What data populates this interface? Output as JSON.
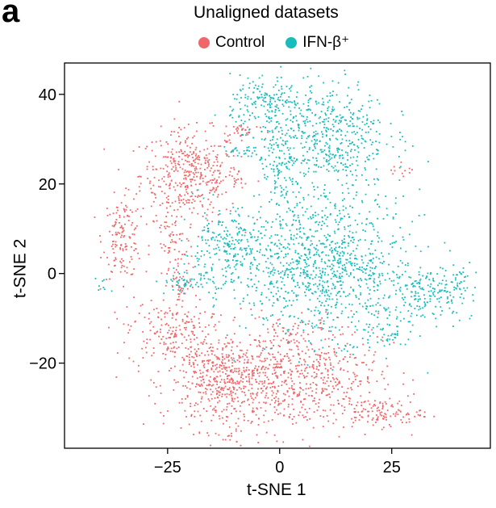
{
  "panel_label": "a",
  "chart_data": {
    "type": "scatter",
    "title": "Unaligned datasets",
    "xlabel": "t-SNE 1",
    "ylabel": "t-SNE 2",
    "xlim": [
      -48,
      47
    ],
    "ylim": [
      -39,
      47
    ],
    "xticks": [
      -25,
      0,
      25
    ],
    "xtick_labels": [
      "−25",
      "0",
      "25"
    ],
    "yticks": [
      -20,
      0,
      20,
      40
    ],
    "ytick_labels": [
      "−20",
      "0",
      "20",
      "40"
    ],
    "grid": false,
    "legend_position": "top",
    "series": [
      {
        "name": "Control",
        "color": "#F0676A",
        "clusters": [
          {
            "cx": -20,
            "cy": 22,
            "sx": 5.5,
            "sy": 5,
            "n": 420
          },
          {
            "cx": -35,
            "cy": 8,
            "sx": 2.2,
            "sy": 4.5,
            "n": 140
          },
          {
            "cx": -24,
            "cy": 6,
            "sx": 2.5,
            "sy": 5,
            "n": 70
          },
          {
            "cx": -8,
            "cy": 32,
            "sx": 2.5,
            "sy": 0.8,
            "n": 35
          },
          {
            "cx": -9,
            "cy": 21,
            "sx": 1,
            "sy": 1,
            "n": 10
          },
          {
            "cx": -25,
            "cy": -13,
            "sx": 4.5,
            "sy": 4,
            "n": 180
          },
          {
            "cx": -22,
            "cy": -3,
            "sx": 1.5,
            "sy": 2,
            "n": 30
          },
          {
            "cx": -12,
            "cy": -24,
            "sx": 6.5,
            "sy": 5.5,
            "n": 520
          },
          {
            "cx": 4,
            "cy": -22,
            "sx": 9,
            "sy": 6.5,
            "n": 600
          },
          {
            "cx": 22,
            "cy": -31,
            "sx": 5,
            "sy": 1.5,
            "n": 120
          },
          {
            "cx": 28,
            "cy": 23,
            "sx": 1.5,
            "sy": 0.8,
            "n": 12
          }
        ]
      },
      {
        "name": "IFN-β⁺",
        "color": "#19BCBC",
        "clusters": [
          {
            "cx": 10,
            "cy": 31,
            "sx": 7,
            "sy": 6,
            "n": 520
          },
          {
            "cx": -3,
            "cy": 38,
            "sx": 4,
            "sy": 3,
            "n": 160
          },
          {
            "cx": 0,
            "cy": 22,
            "sx": 2.5,
            "sy": 4,
            "n": 90
          },
          {
            "cx": -8,
            "cy": 27,
            "sx": 2.5,
            "sy": 1,
            "n": 30
          },
          {
            "cx": 10,
            "cy": 2,
            "sx": 9,
            "sy": 8,
            "n": 1000
          },
          {
            "cx": -12,
            "cy": 5,
            "sx": 5,
            "sy": 4.5,
            "n": 260
          },
          {
            "cx": -21,
            "cy": -2,
            "sx": 3,
            "sy": 1,
            "n": 45
          },
          {
            "cx": 33,
            "cy": -4,
            "sx": 5,
            "sy": 3,
            "n": 160
          },
          {
            "cx": 40,
            "cy": -2,
            "sx": 1.8,
            "sy": 2.5,
            "n": 40
          },
          {
            "cx": 25,
            "cy": -12,
            "sx": 3,
            "sy": 3,
            "n": 60
          },
          {
            "cx": -39,
            "cy": -3,
            "sx": 1,
            "sy": 1.2,
            "n": 8
          }
        ]
      }
    ]
  }
}
